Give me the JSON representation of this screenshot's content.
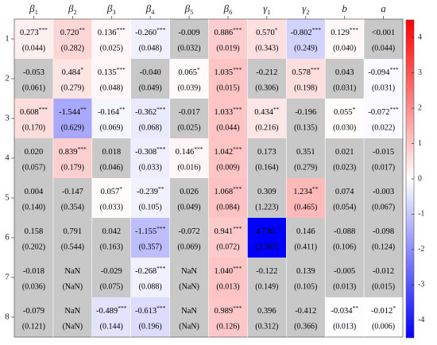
{
  "chart_data": {
    "type": "heatmap",
    "columns": [
      {
        "sym": "β",
        "sub": "1"
      },
      {
        "sym": "β",
        "sub": "2"
      },
      {
        "sym": "β",
        "sub": "3"
      },
      {
        "sym": "β",
        "sub": "4"
      },
      {
        "sym": "β",
        "sub": "5"
      },
      {
        "sym": "β",
        "sub": "6"
      },
      {
        "sym": "γ",
        "sub": "1"
      },
      {
        "sym": "γ",
        "sub": "2"
      },
      {
        "sym": "b",
        "sub": ""
      },
      {
        "sym": "a",
        "sub": ""
      }
    ],
    "rows": [
      "1",
      "2",
      "3",
      "4",
      "5",
      "6",
      "7",
      "8"
    ],
    "colorbar": {
      "range": [
        -4.5,
        4.5
      ],
      "ticks": [
        "4",
        "3",
        "2",
        "1",
        "0",
        "-1",
        "-2",
        "-3",
        "-4"
      ],
      "tick_values": [
        4,
        3,
        2,
        1,
        0,
        -1,
        -2,
        -3,
        -4
      ],
      "colors": {
        "negative": "#0000ff",
        "zero": "#ffffff",
        "positive": "#ff0000",
        "insignificant": "#c8c8c8"
      }
    },
    "cells": [
      [
        {
          "est": "0.273",
          "stars": "***",
          "se": "(0.044)",
          "value": 0.273,
          "sig": true
        },
        {
          "est": "0.720",
          "stars": "**",
          "se": "(0.282)",
          "value": 0.72,
          "sig": true
        },
        {
          "est": "0.136",
          "stars": "***",
          "se": "(0.025)",
          "value": 0.136,
          "sig": true
        },
        {
          "est": "-0.260",
          "stars": "***",
          "se": "(0.048)",
          "value": -0.26,
          "sig": true
        },
        {
          "est": "-0.009",
          "stars": "",
          "se": "(0.032)",
          "value": -0.009,
          "sig": false
        },
        {
          "est": "0.886",
          "stars": "***",
          "se": "(0.019)",
          "value": 0.886,
          "sig": true
        },
        {
          "est": "0.570",
          "stars": "*",
          "se": "(0.343)",
          "value": 0.57,
          "sig": true
        },
        {
          "est": "-0.802",
          "stars": "***",
          "se": "(0.249)",
          "value": -0.802,
          "sig": true
        },
        {
          "est": "0.129",
          "stars": "***",
          "se": "(0.040)",
          "value": 0.129,
          "sig": true
        },
        {
          "est": "<0.001",
          "stars": "",
          "se": "(0.044)",
          "value": 0.0,
          "sig": false
        }
      ],
      [
        {
          "est": "-0.053",
          "stars": "",
          "se": "(0.061)",
          "value": -0.053,
          "sig": false
        },
        {
          "est": "0.484",
          "stars": "*",
          "se": "(0.279)",
          "value": 0.484,
          "sig": true
        },
        {
          "est": "0.135",
          "stars": "***",
          "se": "(0.048)",
          "value": 0.135,
          "sig": true
        },
        {
          "est": "-0.040",
          "stars": "",
          "se": "(0.049)",
          "value": -0.04,
          "sig": false
        },
        {
          "est": "0.065",
          "stars": "*",
          "se": "(0.039)",
          "value": 0.065,
          "sig": true
        },
        {
          "est": "1.035",
          "stars": "***",
          "se": "(0.015)",
          "value": 1.035,
          "sig": true
        },
        {
          "est": "-0.212",
          "stars": "",
          "se": "(0.306)",
          "value": -0.212,
          "sig": false
        },
        {
          "est": "0.578",
          "stars": "***",
          "se": "(0.198)",
          "value": 0.578,
          "sig": true
        },
        {
          "est": "0.043",
          "stars": "",
          "se": "(0.031)",
          "value": 0.043,
          "sig": false
        },
        {
          "est": "-0.094",
          "stars": "***",
          "se": "(0.031)",
          "value": -0.094,
          "sig": true
        }
      ],
      [
        {
          "est": "0.608",
          "stars": "***",
          "se": "(0.170)",
          "value": 0.608,
          "sig": true
        },
        {
          "est": "-1.544",
          "stars": "**",
          "se": "(0.629)",
          "value": -1.544,
          "sig": true
        },
        {
          "est": "-0.164",
          "stars": "**",
          "se": "(0.069)",
          "value": -0.164,
          "sig": true
        },
        {
          "est": "-0.362",
          "stars": "***",
          "se": "(0.068)",
          "value": -0.362,
          "sig": true
        },
        {
          "est": "-0.017",
          "stars": "",
          "se": "(0.025)",
          "value": -0.017,
          "sig": false
        },
        {
          "est": "1.033",
          "stars": "***",
          "se": "(0.044)",
          "value": 1.033,
          "sig": true
        },
        {
          "est": "0.434",
          "stars": "**",
          "se": "(0.216)",
          "value": 0.434,
          "sig": true
        },
        {
          "est": "-0.196",
          "stars": "",
          "se": "(0.135)",
          "value": -0.196,
          "sig": false
        },
        {
          "est": "0.055",
          "stars": "*",
          "se": "(0.030)",
          "value": 0.055,
          "sig": true
        },
        {
          "est": "-0.072",
          "stars": "***",
          "se": "(0.022)",
          "value": -0.072,
          "sig": true
        }
      ],
      [
        {
          "est": "0.020",
          "stars": "",
          "se": "(0.057)",
          "value": 0.02,
          "sig": false
        },
        {
          "est": "0.839",
          "stars": "***",
          "se": "(0.179)",
          "value": 0.839,
          "sig": true
        },
        {
          "est": "0.018",
          "stars": "",
          "se": "(0.046)",
          "value": 0.018,
          "sig": false
        },
        {
          "est": "-0.308",
          "stars": "***",
          "se": "(0.033)",
          "value": -0.308,
          "sig": true
        },
        {
          "est": "0.146",
          "stars": "***",
          "se": "(0.016)",
          "value": 0.146,
          "sig": true
        },
        {
          "est": "1.042",
          "stars": "***",
          "se": "(0.009)",
          "value": 1.042,
          "sig": true
        },
        {
          "est": "0.173",
          "stars": "",
          "se": "(0.164)",
          "value": 0.173,
          "sig": false
        },
        {
          "est": "0.351",
          "stars": "",
          "se": "(0.279)",
          "value": 0.351,
          "sig": false
        },
        {
          "est": "0.021",
          "stars": "",
          "se": "(0.023)",
          "value": 0.021,
          "sig": false
        },
        {
          "est": "-0.015",
          "stars": "",
          "se": "(0.017)",
          "value": -0.015,
          "sig": false
        }
      ],
      [
        {
          "est": "0.004",
          "stars": "",
          "se": "(0.140)",
          "value": 0.004,
          "sig": false
        },
        {
          "est": "-0.147",
          "stars": "",
          "se": "(0.354)",
          "value": -0.147,
          "sig": false
        },
        {
          "est": "0.057",
          "stars": "*",
          "se": "(0.033)",
          "value": 0.057,
          "sig": true
        },
        {
          "est": "-0.239",
          "stars": "**",
          "se": "(0.105)",
          "value": -0.239,
          "sig": true
        },
        {
          "est": "0.026",
          "stars": "",
          "se": "(0.049)",
          "value": 0.026,
          "sig": false
        },
        {
          "est": "1.068",
          "stars": "***",
          "se": "(0.084)",
          "value": 1.068,
          "sig": true
        },
        {
          "est": "0.309",
          "stars": "",
          "se": "(1.223)",
          "value": 0.309,
          "sig": false
        },
        {
          "est": "1.234",
          "stars": "**",
          "se": "(0.465)",
          "value": 1.234,
          "sig": true
        },
        {
          "est": "0.074",
          "stars": "",
          "se": "(0.054)",
          "value": 0.074,
          "sig": false
        },
        {
          "est": "-0.003",
          "stars": "",
          "se": "(0.067)",
          "value": -0.003,
          "sig": false
        }
      ],
      [
        {
          "est": "0.158",
          "stars": "",
          "se": "(0.202)",
          "value": 0.158,
          "sig": false
        },
        {
          "est": "0.791",
          "stars": "",
          "se": "(0.544)",
          "value": 0.791,
          "sig": false
        },
        {
          "est": "0.042",
          "stars": "",
          "se": "(0.163)",
          "value": 0.042,
          "sig": false
        },
        {
          "est": "-1.155",
          "stars": "***",
          "se": "(0.357)",
          "value": -1.155,
          "sig": true
        },
        {
          "est": "-0.072",
          "stars": "",
          "se": "(0.069)",
          "value": -0.072,
          "sig": false
        },
        {
          "est": "0.941",
          "stars": "***",
          "se": "(0.072)",
          "value": 0.941,
          "sig": true
        },
        {
          "est": "-4.736",
          "stars": "**",
          "se": "(2.367)",
          "value": -4.736,
          "sig": true
        },
        {
          "est": "0.146",
          "stars": "",
          "se": "(0.411)",
          "value": 0.146,
          "sig": false
        },
        {
          "est": "-0.088",
          "stars": "",
          "se": "(0.106)",
          "value": -0.088,
          "sig": false
        },
        {
          "est": "-0.098",
          "stars": "",
          "se": "(0.124)",
          "value": -0.098,
          "sig": false
        }
      ],
      [
        {
          "est": "-0.018",
          "stars": "",
          "se": "(0.036)",
          "value": -0.018,
          "sig": false
        },
        {
          "est": "NaN",
          "stars": "",
          "se": "(NaN)",
          "value": null,
          "sig": false
        },
        {
          "est": "-0.029",
          "stars": "",
          "se": "(0.075)",
          "value": -0.029,
          "sig": false
        },
        {
          "est": "-0.268",
          "stars": "***",
          "se": "(0.088)",
          "value": -0.268,
          "sig": true
        },
        {
          "est": "NaN",
          "stars": "",
          "se": "(NaN)",
          "value": null,
          "sig": false
        },
        {
          "est": "1.040",
          "stars": "***",
          "se": "(0.013)",
          "value": 1.04,
          "sig": true
        },
        {
          "est": "-0.122",
          "stars": "",
          "se": "(0.149)",
          "value": -0.122,
          "sig": false
        },
        {
          "est": "0.139",
          "stars": "",
          "se": "(0.105)",
          "value": 0.139,
          "sig": false
        },
        {
          "est": "-0.005",
          "stars": "",
          "se": "(0.013)",
          "value": -0.005,
          "sig": false
        },
        {
          "est": "-0.012",
          "stars": "",
          "se": "(0.015)",
          "value": -0.012,
          "sig": false
        }
      ],
      [
        {
          "est": "-0.079",
          "stars": "",
          "se": "(0.121)",
          "value": -0.079,
          "sig": false
        },
        {
          "est": "NaN",
          "stars": "",
          "se": "(NaN)",
          "value": null,
          "sig": false
        },
        {
          "est": "-0.489",
          "stars": "***",
          "se": "(0.144)",
          "value": -0.489,
          "sig": true
        },
        {
          "est": "-0.613",
          "stars": "***",
          "se": "(0.196)",
          "value": -0.613,
          "sig": true
        },
        {
          "est": "NaN",
          "stars": "",
          "se": "(NaN)",
          "value": null,
          "sig": false
        },
        {
          "est": "0.989",
          "stars": "***",
          "se": "(0.126)",
          "value": 0.989,
          "sig": true
        },
        {
          "est": "0.396",
          "stars": "",
          "se": "(0.312)",
          "value": 0.396,
          "sig": false
        },
        {
          "est": "-0.412",
          "stars": "",
          "se": "(0.366)",
          "value": -0.412,
          "sig": false
        },
        {
          "est": "-0.034",
          "stars": "**",
          "se": "(0.013)",
          "value": -0.034,
          "sig": true
        },
        {
          "est": "-0.012",
          "stars": "*",
          "se": "(0.006)",
          "value": -0.012,
          "sig": true
        }
      ]
    ]
  }
}
